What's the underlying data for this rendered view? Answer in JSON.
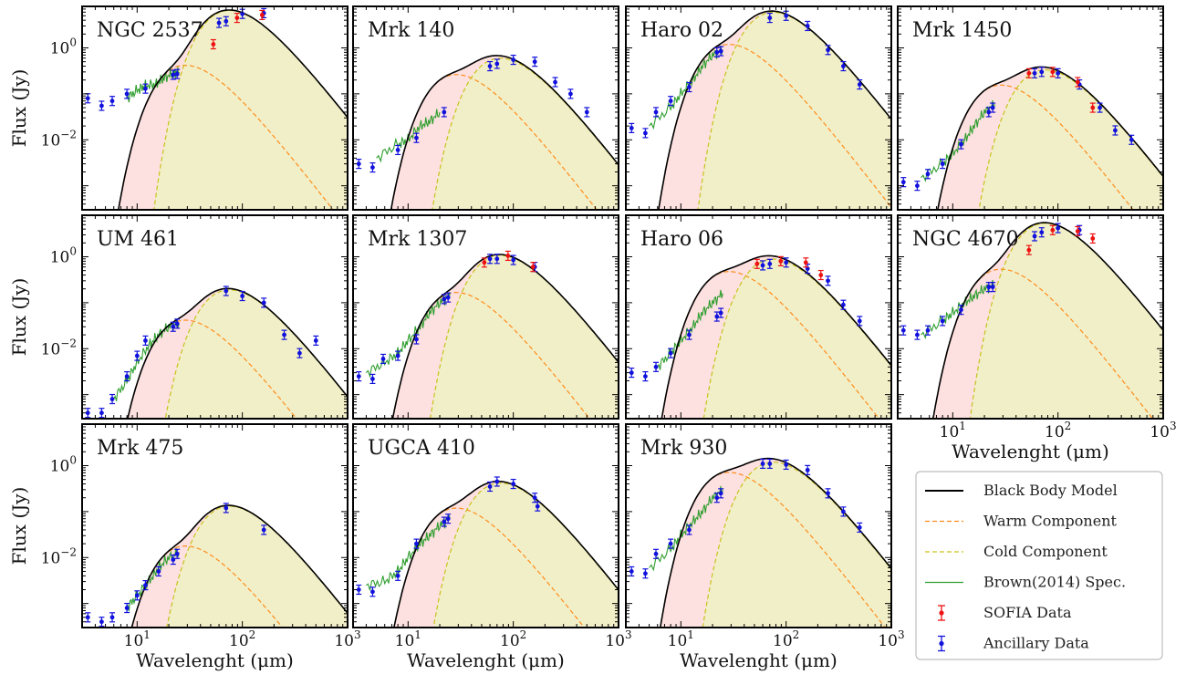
{
  "figure": {
    "xlabel": "Wavelenght (μm)",
    "ylabel": "Flux (Jy)",
    "legend": {
      "placement": "bottom-right",
      "entries": [
        {
          "label": "Black Body Model",
          "color": "#000000",
          "style": "solid"
        },
        {
          "label": "Warm Component",
          "color": "#ff8c1a",
          "style": "dashed"
        },
        {
          "label": "Cold Component",
          "color": "#c9c21c",
          "style": "dashed"
        },
        {
          "label": "Brown(2014) Spec.",
          "color": "#2e9e2e",
          "style": "solid"
        },
        {
          "label": "SOFIA Data",
          "color": "#ee1111",
          "style": "errorbar"
        },
        {
          "label": "Ancillary Data",
          "color": "#1111dd",
          "style": "errorbar"
        }
      ]
    },
    "colors": {
      "warm_fill": "#fde0e0",
      "cold_fill": "#f1efc8",
      "model": "#000000",
      "warm": "#ff8c1a",
      "cold": "#c9c21c",
      "spec": "#2e9e2e",
      "sofia": "#ee1111",
      "ancillary": "#1111dd"
    },
    "x_ticks": [
      {
        "base": "10",
        "exp": "1",
        "value": 10
      },
      {
        "base": "10",
        "exp": "2",
        "value": 100
      },
      {
        "base": "10",
        "exp": "3",
        "value": 1000
      }
    ],
    "y_ticks": [
      {
        "base": "10",
        "exp": "0",
        "value": 1
      },
      {
        "base": "10",
        "exp": "−2",
        "value": 0.01
      }
    ]
  },
  "chart_data": [
    {
      "type": "line",
      "title": "NGC 2537",
      "xscale": "log",
      "yscale": "log",
      "xlim": [
        3,
        1000
      ],
      "ylim": [
        0.0003,
        8
      ],
      "warm_peak": 0.35,
      "cold_peak": 5.5,
      "spec_points": [
        [
          8,
          0.08
        ],
        [
          10,
          0.12
        ],
        [
          12,
          0.15
        ],
        [
          15,
          0.16
        ],
        [
          18,
          0.22
        ],
        [
          22,
          0.28
        ],
        [
          25,
          0.3
        ]
      ],
      "sofia": [
        [
          53,
          1.2
        ],
        [
          89,
          4.5
        ],
        [
          154,
          5.2
        ]
      ],
      "ancillary": [
        [
          3.4,
          0.08
        ],
        [
          4.6,
          0.055
        ],
        [
          5.8,
          0.07
        ],
        [
          8,
          0.1
        ],
        [
          12,
          0.13
        ],
        [
          24,
          0.27
        ],
        [
          22,
          0.26
        ],
        [
          60,
          3.5
        ],
        [
          70,
          3.8
        ],
        [
          100,
          5.5
        ],
        [
          160,
          5.7
        ]
      ]
    },
    {
      "type": "line",
      "title": "Mrk 140",
      "xscale": "log",
      "yscale": "log",
      "xlim": [
        3,
        1000
      ],
      "ylim": [
        0.0003,
        8
      ],
      "warm_peak": 0.22,
      "cold_peak": 0.5,
      "spec_points": [
        [
          5,
          0.004
        ],
        [
          8,
          0.008
        ],
        [
          10,
          0.01
        ],
        [
          13,
          0.02
        ],
        [
          16,
          0.025
        ],
        [
          20,
          0.04
        ]
      ],
      "sofia": [],
      "ancillary": [
        [
          3.4,
          0.003
        ],
        [
          4.6,
          0.0025
        ],
        [
          8,
          0.006
        ],
        [
          12,
          0.011
        ],
        [
          22,
          0.04
        ],
        [
          60,
          0.4
        ],
        [
          70,
          0.45
        ],
        [
          100,
          0.55
        ],
        [
          160,
          0.5
        ],
        [
          250,
          0.18
        ],
        [
          350,
          0.1
        ],
        [
          500,
          0.04
        ]
      ]
    },
    {
      "type": "line",
      "title": "Haro 02",
      "xscale": "log",
      "yscale": "log",
      "xlim": [
        3,
        1000
      ],
      "ylim": [
        0.0003,
        8
      ],
      "warm_peak": 1.0,
      "cold_peak": 5.0,
      "spec_points": [
        [
          5,
          0.02
        ],
        [
          8,
          0.05
        ],
        [
          10,
          0.1
        ],
        [
          13,
          0.2
        ],
        [
          16,
          0.4
        ],
        [
          20,
          0.7
        ],
        [
          25,
          0.9
        ]
      ],
      "sofia": [],
      "ancillary": [
        [
          3.4,
          0.018
        ],
        [
          4.6,
          0.014
        ],
        [
          5.8,
          0.04
        ],
        [
          8,
          0.07
        ],
        [
          12,
          0.14
        ],
        [
          22,
          0.8
        ],
        [
          24,
          0.85
        ],
        [
          70,
          4.5
        ],
        [
          100,
          5.0
        ],
        [
          160,
          3.0
        ],
        [
          250,
          0.9
        ],
        [
          350,
          0.4
        ],
        [
          500,
          0.16
        ]
      ]
    },
    {
      "type": "line",
      "title": "Mrk 1450",
      "xscale": "log",
      "yscale": "log",
      "xlim": [
        3,
        1000
      ],
      "ylim": [
        0.0003,
        8
      ],
      "warm_peak": 0.13,
      "cold_peak": 0.28,
      "spec_points": [
        [
          5,
          0.0015
        ],
        [
          8,
          0.003
        ],
        [
          10,
          0.005
        ],
        [
          13,
          0.01
        ],
        [
          16,
          0.02
        ],
        [
          20,
          0.04
        ],
        [
          25,
          0.06
        ]
      ],
      "sofia": [
        [
          53,
          0.28
        ],
        [
          89,
          0.3
        ],
        [
          154,
          0.18
        ],
        [
          214,
          0.05
        ]
      ],
      "ancillary": [
        [
          3.4,
          0.0012
        ],
        [
          4.6,
          0.001
        ],
        [
          5.8,
          0.0018
        ],
        [
          8,
          0.003
        ],
        [
          12,
          0.008
        ],
        [
          22,
          0.04
        ],
        [
          24,
          0.05
        ],
        [
          60,
          0.28
        ],
        [
          70,
          0.3
        ],
        [
          100,
          0.28
        ],
        [
          160,
          0.16
        ],
        [
          250,
          0.05
        ],
        [
          350,
          0.016
        ],
        [
          500,
          0.01
        ]
      ]
    },
    {
      "type": "line",
      "title": "UM 461",
      "xscale": "log",
      "yscale": "log",
      "xlim": [
        3,
        1000
      ],
      "ylim": [
        0.0003,
        8
      ],
      "warm_peak": 0.035,
      "cold_peak": 0.16,
      "spec_points": [
        [
          6,
          0.0008
        ],
        [
          8,
          0.002
        ],
        [
          10,
          0.005
        ],
        [
          13,
          0.012
        ],
        [
          16,
          0.02
        ],
        [
          20,
          0.03
        ],
        [
          25,
          0.035
        ]
      ],
      "sofia": [],
      "ancillary": [
        [
          3.4,
          0.0004
        ],
        [
          4.6,
          0.0004
        ],
        [
          5.8,
          0.0008
        ],
        [
          8,
          0.0025
        ],
        [
          10,
          0.007
        ],
        [
          12,
          0.015
        ],
        [
          22,
          0.03
        ],
        [
          24,
          0.035
        ],
        [
          70,
          0.18
        ],
        [
          100,
          0.14
        ],
        [
          160,
          0.1
        ],
        [
          250,
          0.02
        ],
        [
          350,
          0.008
        ],
        [
          500,
          0.015
        ]
      ]
    },
    {
      "type": "line",
      "title": "Mrk 1307",
      "xscale": "log",
      "yscale": "log",
      "xlim": [
        3,
        1000
      ],
      "ylim": [
        0.0003,
        8
      ],
      "warm_peak": 0.14,
      "cold_peak": 0.9,
      "spec_points": [
        [
          4,
          0.003
        ],
        [
          6,
          0.005
        ],
        [
          8,
          0.008
        ],
        [
          10,
          0.015
        ],
        [
          13,
          0.03
        ],
        [
          16,
          0.06
        ],
        [
          20,
          0.1
        ],
        [
          25,
          0.14
        ]
      ],
      "sofia": [
        [
          53,
          0.75
        ],
        [
          89,
          1.05
        ],
        [
          154,
          0.6
        ]
      ],
      "ancillary": [
        [
          3.4,
          0.0025
        ],
        [
          4.6,
          0.0022
        ],
        [
          5.8,
          0.006
        ],
        [
          8,
          0.007
        ],
        [
          12,
          0.016
        ],
        [
          22,
          0.12
        ],
        [
          24,
          0.13
        ],
        [
          60,
          0.9
        ],
        [
          70,
          0.9
        ],
        [
          100,
          0.85
        ],
        [
          160,
          0.6
        ]
      ]
    },
    {
      "type": "line",
      "title": "Haro 06",
      "xscale": "log",
      "yscale": "log",
      "xlim": [
        3,
        1000
      ],
      "ylim": [
        0.0003,
        8
      ],
      "warm_peak": 0.4,
      "cold_peak": 0.75,
      "spec_points": [
        [
          6,
          0.004
        ],
        [
          8,
          0.008
        ],
        [
          10,
          0.015
        ],
        [
          13,
          0.03
        ],
        [
          16,
          0.06
        ],
        [
          20,
          0.1
        ],
        [
          25,
          0.16
        ]
      ],
      "sofia": [
        [
          53,
          0.7
        ],
        [
          89,
          0.8
        ],
        [
          154,
          0.75
        ],
        [
          214,
          0.4
        ]
      ],
      "ancillary": [
        [
          3.4,
          0.003
        ],
        [
          4.6,
          0.0025
        ],
        [
          5.8,
          0.004
        ],
        [
          8,
          0.008
        ],
        [
          12,
          0.02
        ],
        [
          22,
          0.05
        ],
        [
          24,
          0.06
        ],
        [
          60,
          0.65
        ],
        [
          70,
          0.7
        ],
        [
          100,
          0.75
        ],
        [
          160,
          0.55
        ],
        [
          250,
          0.3
        ],
        [
          350,
          0.09
        ],
        [
          500,
          0.04
        ]
      ]
    },
    {
      "type": "line",
      "title": "NGC 4670",
      "xscale": "log",
      "yscale": "log",
      "xlim": [
        3,
        1000
      ],
      "ylim": [
        0.0003,
        8
      ],
      "warm_peak": 0.45,
      "cold_peak": 4.5,
      "spec_points": [
        [
          5,
          0.02
        ],
        [
          8,
          0.04
        ],
        [
          10,
          0.06
        ],
        [
          13,
          0.1
        ],
        [
          16,
          0.14
        ],
        [
          20,
          0.2
        ],
        [
          25,
          0.25
        ]
      ],
      "sofia": [
        [
          53,
          1.4
        ],
        [
          89,
          3.8
        ],
        [
          154,
          3.6
        ],
        [
          214,
          2.5
        ]
      ],
      "ancillary": [
        [
          3.4,
          0.025
        ],
        [
          4.6,
          0.02
        ],
        [
          5.8,
          0.025
        ],
        [
          8,
          0.04
        ],
        [
          12,
          0.07
        ],
        [
          22,
          0.22
        ],
        [
          24,
          0.22
        ],
        [
          60,
          2.8
        ],
        [
          70,
          3.4
        ],
        [
          100,
          4.2
        ],
        [
          160,
          3.8
        ]
      ]
    },
    {
      "type": "line",
      "title": "Mrk 475",
      "xscale": "log",
      "yscale": "log",
      "xlim": [
        3,
        1000
      ],
      "ylim": [
        0.0003,
        8
      ],
      "warm_peak": 0.015,
      "cold_peak": 0.11,
      "spec_points": [
        [
          8,
          0.0008
        ],
        [
          10,
          0.0015
        ],
        [
          13,
          0.003
        ],
        [
          16,
          0.006
        ],
        [
          20,
          0.01
        ],
        [
          25,
          0.013
        ]
      ],
      "sofia": [],
      "ancillary": [
        [
          3.4,
          0.0005
        ],
        [
          4.6,
          0.0004
        ],
        [
          5.8,
          0.0005
        ],
        [
          8,
          0.0008
        ],
        [
          10,
          0.0015
        ],
        [
          12,
          0.0025
        ],
        [
          16,
          0.005
        ],
        [
          22,
          0.009
        ],
        [
          24,
          0.012
        ],
        [
          70,
          0.12
        ],
        [
          160,
          0.04
        ]
      ]
    },
    {
      "type": "line",
      "title": "UGCA 410",
      "xscale": "log",
      "yscale": "log",
      "xlim": [
        3,
        1000
      ],
      "ylim": [
        0.0003,
        8
      ],
      "warm_peak": 0.1,
      "cold_peak": 0.35,
      "spec_points": [
        [
          4,
          0.0025
        ],
        [
          6,
          0.003
        ],
        [
          8,
          0.005
        ],
        [
          10,
          0.01
        ],
        [
          13,
          0.02
        ],
        [
          16,
          0.03
        ],
        [
          20,
          0.05
        ],
        [
          25,
          0.07
        ]
      ],
      "sofia": [],
      "ancillary": [
        [
          3.4,
          0.002
        ],
        [
          4.6,
          0.0018
        ],
        [
          8,
          0.004
        ],
        [
          12,
          0.02
        ],
        [
          22,
          0.06
        ],
        [
          24,
          0.07
        ],
        [
          60,
          0.35
        ],
        [
          70,
          0.45
        ],
        [
          100,
          0.4
        ],
        [
          160,
          0.2
        ],
        [
          170,
          0.13
        ]
      ]
    },
    {
      "type": "line",
      "title": "Mrk 930",
      "xscale": "log",
      "yscale": "log",
      "xlim": [
        3,
        1000
      ],
      "ylim": [
        0.0003,
        8
      ],
      "warm_peak": 0.6,
      "cold_peak": 1.0,
      "spec_points": [
        [
          5,
          0.006
        ],
        [
          8,
          0.015
        ],
        [
          10,
          0.03
        ],
        [
          13,
          0.06
        ],
        [
          16,
          0.1
        ],
        [
          20,
          0.2
        ],
        [
          25,
          0.3
        ]
      ],
      "sofia": [],
      "ancillary": [
        [
          3.4,
          0.005
        ],
        [
          4.6,
          0.0045
        ],
        [
          5.8,
          0.012
        ],
        [
          8,
          0.02
        ],
        [
          12,
          0.04
        ],
        [
          22,
          0.2
        ],
        [
          24,
          0.25
        ],
        [
          60,
          1.1
        ],
        [
          70,
          1.1
        ],
        [
          100,
          1.05
        ],
        [
          160,
          0.8
        ],
        [
          250,
          0.25
        ],
        [
          350,
          0.1
        ],
        [
          500,
          0.045
        ]
      ]
    }
  ]
}
